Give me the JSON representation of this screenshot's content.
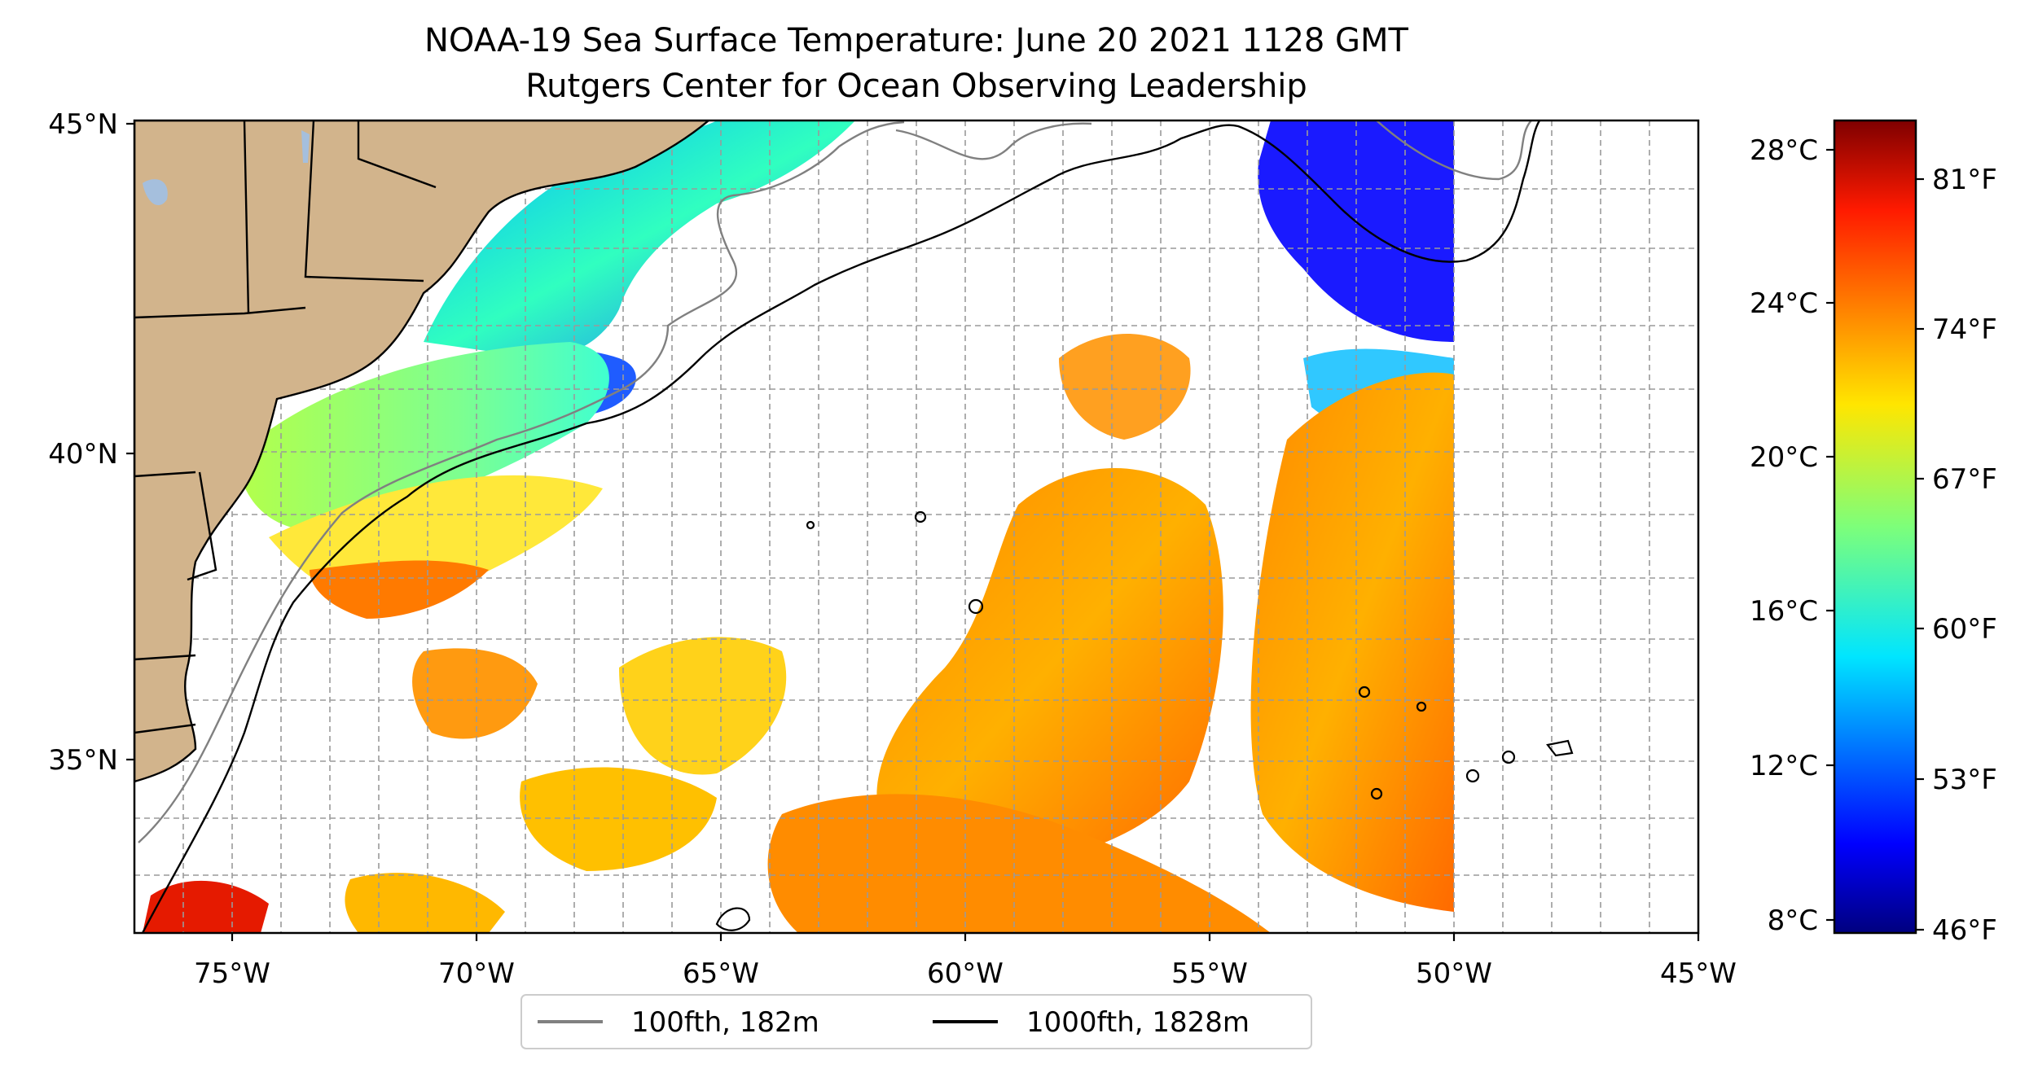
{
  "title": "NOAA-19 Sea Surface Temperature: June 20 2021 1128 GMT",
  "subtitle": "Rutgers Center for Ocean Observing Leadership",
  "map": {
    "lat_ticks": [
      "45°N",
      "40°N",
      "35°N"
    ],
    "lon_ticks": [
      "75°W",
      "70°W",
      "65°W",
      "60°W",
      "55°W",
      "50°W",
      "45°W"
    ],
    "extent": {
      "lon": [
        -77,
        -45
      ],
      "lat": [
        32.2,
        45
      ]
    },
    "land_color": "#d2b48c",
    "grid": "dashed",
    "no_data_color": "#ffffff"
  },
  "colorbar": {
    "celsius_ticks": [
      "28°C",
      "24°C",
      "20°C",
      "16°C",
      "12°C",
      "8°C"
    ],
    "fahrenheit_ticks": [
      "81°F",
      "74°F",
      "67°F",
      "60°F",
      "53°F",
      "46°F"
    ],
    "range_c": [
      7.6,
      28.4
    ],
    "colormap": "jet"
  },
  "legend": {
    "items": [
      {
        "label": "100fth, 182m",
        "color": "#808080"
      },
      {
        "label": "1000fth, 1828m",
        "color": "#000000"
      }
    ],
    "placement": "bottom-center"
  }
}
